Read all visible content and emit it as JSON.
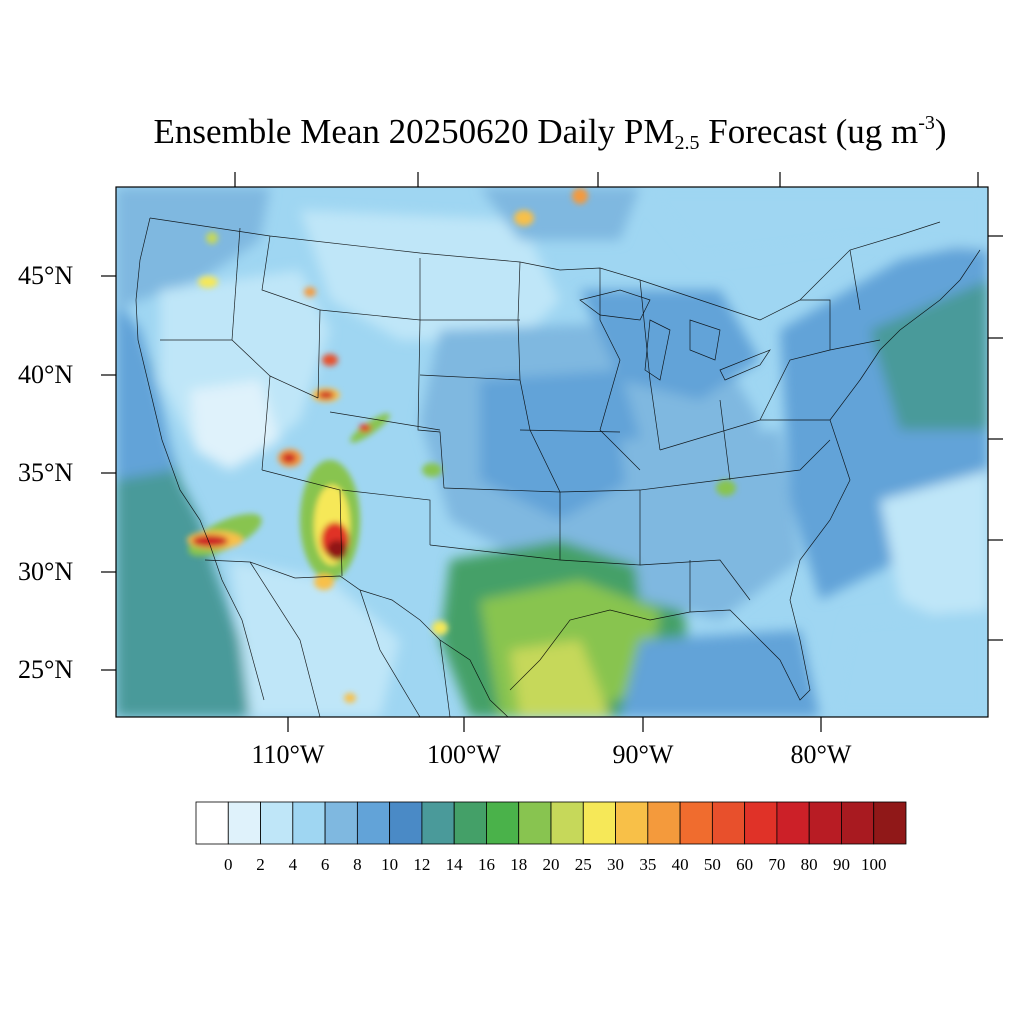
{
  "title": {
    "prefix": "Ensemble Mean 20250620 Daily PM",
    "subscript": "2.5",
    "middle": " Forecast (ug m",
    "superscript": "-3",
    "suffix": ")"
  },
  "axes": {
    "lat_labels": [
      "45°N",
      "40°N",
      "35°N",
      "30°N",
      "25°N"
    ],
    "lon_labels": [
      "110°W",
      "100°W",
      "90°W",
      "80°W"
    ]
  },
  "legend": {
    "levels": [
      "0",
      "2",
      "4",
      "6",
      "8",
      "10",
      "12",
      "14",
      "16",
      "18",
      "20",
      "25",
      "30",
      "35",
      "40",
      "50",
      "60",
      "70",
      "80",
      "90",
      "100"
    ],
    "colors": [
      "#ffffff",
      "#dff2fb",
      "#bfe6f8",
      "#9fd6f2",
      "#7fb8e0",
      "#62a3d8",
      "#4a8ac6",
      "#4a9a9a",
      "#44a068",
      "#4ab24a",
      "#88c450",
      "#c6d85a",
      "#f6e858",
      "#f8c048",
      "#f49a3c",
      "#f06c2e",
      "#e8502c",
      "#e03228",
      "#cc2028",
      "#b81c24",
      "#a81a20",
      "#901818"
    ]
  }
}
